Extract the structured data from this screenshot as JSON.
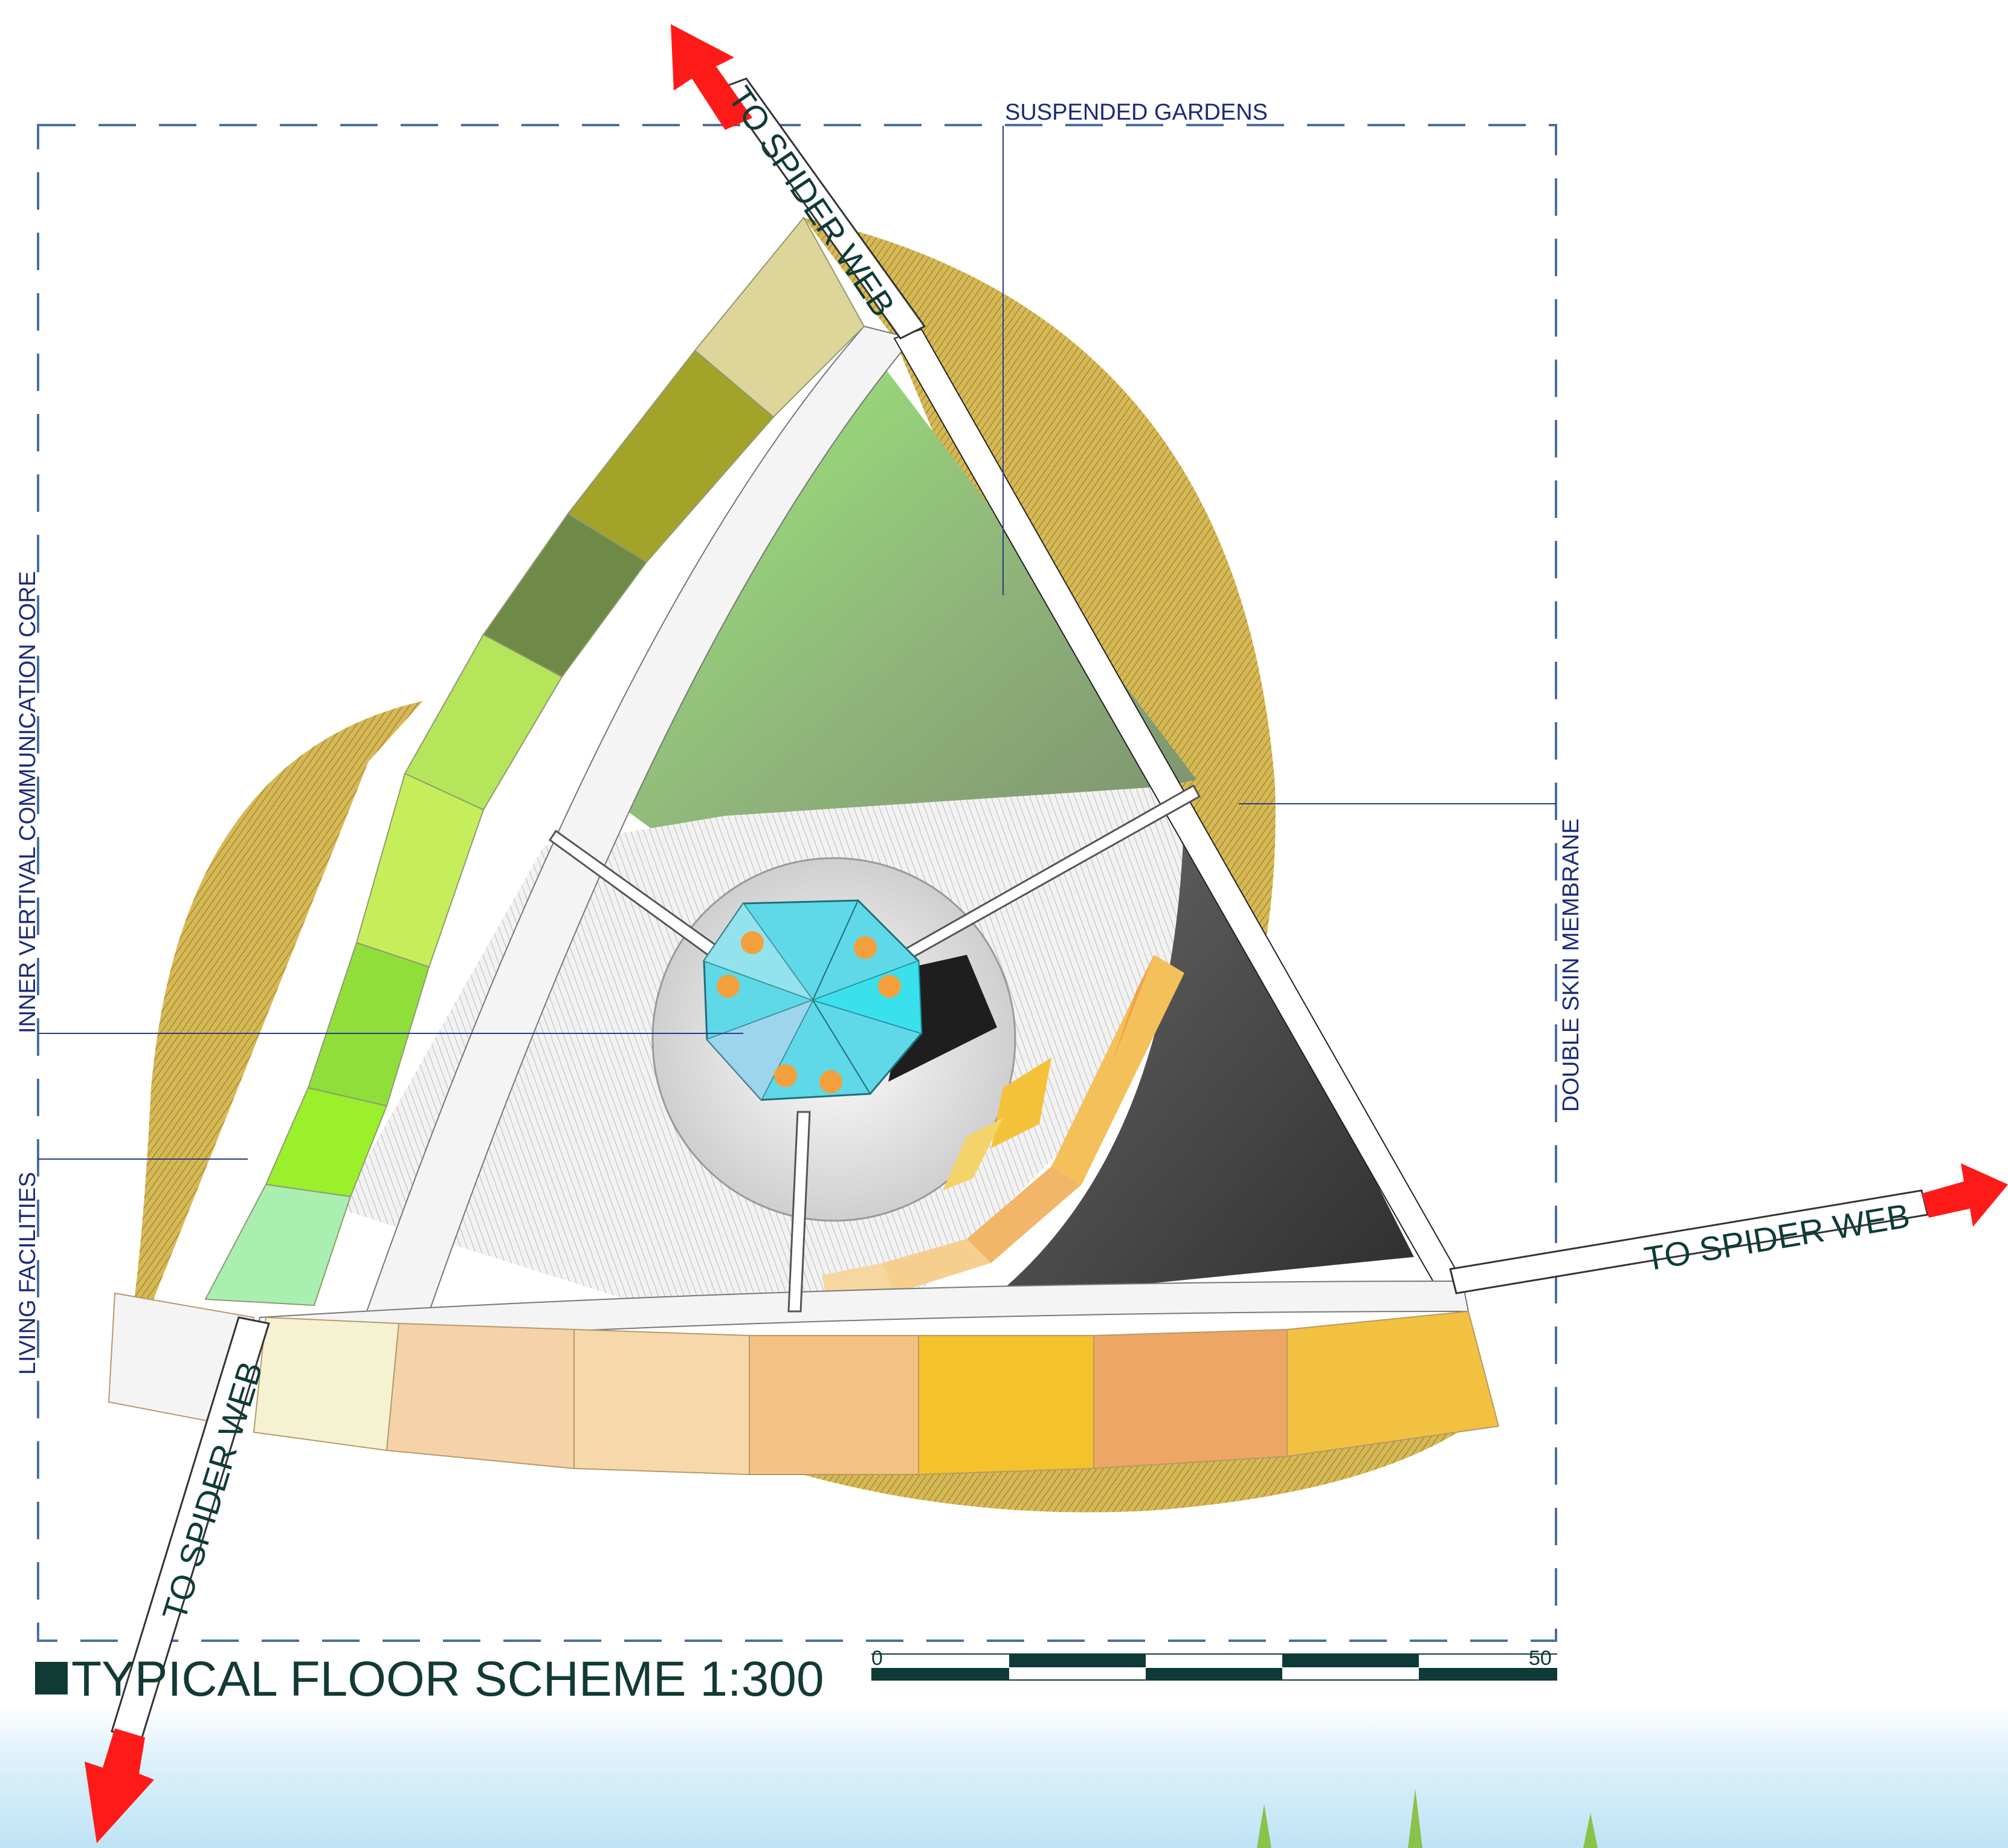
{
  "labels": {
    "suspended_gardens": "SUSPENDED GARDENS",
    "inner_core": "INNER VERTIVAL COMMUNICATION CORE",
    "living_facilities": "LIVING FACILITIES",
    "double_skin": "DOUBLE SKIN MEMBRANE"
  },
  "bridges": {
    "top": "TO SPIDER WEB",
    "right": "TO SPIDER WEB",
    "bottom_left": "TO SPIDER WEB"
  },
  "title": "TYPICAL FLOOR SCHEME 1:300",
  "scale_bar": {
    "start": "0",
    "end": "50",
    "segments": 5
  },
  "colors": {
    "frame": "#4a6fa0",
    "label_text": "#1b2a7a",
    "bridge_text": "#0e3b38",
    "arrow": "#ff1a1a",
    "title": "#123a34",
    "core": "#5fd8e8",
    "core_dots": "#f3a03c",
    "sky": "#cfeaf8"
  }
}
